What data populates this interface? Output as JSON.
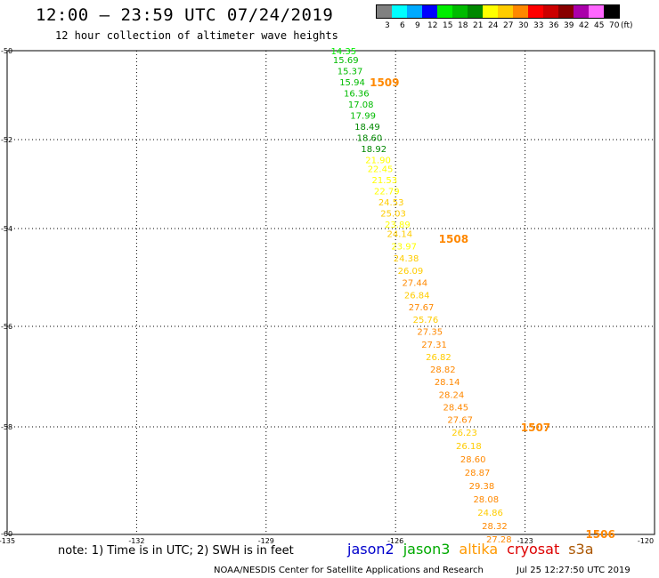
{
  "header": {
    "title": "12:00 — 23:59 UTC 07/24/2019",
    "subtitle": "12 hour collection of altimeter wave heights"
  },
  "legend": {
    "unit_label": "(ft)",
    "bins": [
      {
        "label": "3",
        "color": "#808080"
      },
      {
        "label": "6",
        "color": "#00ffff"
      },
      {
        "label": "9",
        "color": "#00aaff"
      },
      {
        "label": "12",
        "color": "#0000ff"
      },
      {
        "label": "15",
        "color": "#00ee00"
      },
      {
        "label": "18",
        "color": "#00bb00"
      },
      {
        "label": "21",
        "color": "#008800"
      },
      {
        "label": "24",
        "color": "#ffff00"
      },
      {
        "label": "27",
        "color": "#ffcc00"
      },
      {
        "label": "30",
        "color": "#ff8800"
      },
      {
        "label": "33",
        "color": "#ff0000"
      },
      {
        "label": "36",
        "color": "#cc0000"
      },
      {
        "label": "39",
        "color": "#880000"
      },
      {
        "label": "42",
        "color": "#aa00aa"
      },
      {
        "label": "45",
        "color": "#ff66ff"
      },
      {
        "label": "70",
        "color": "#000000"
      }
    ]
  },
  "map": {
    "lat_ticks": [
      "-50",
      "-52",
      "-54",
      "-56",
      "-58",
      "-60"
    ],
    "lon_ticks": [
      "-135",
      "-132",
      "-129",
      "-126",
      "-123",
      "-120"
    ],
    "hour_marks": [
      {
        "label": "1509",
        "lat": -50.7,
        "lon": -126.6
      },
      {
        "label": "1508",
        "lat": -54.2,
        "lon": -125.0
      },
      {
        "label": "1507",
        "lat": -58.0,
        "lon": -123.1
      },
      {
        "label": "1506",
        "lat": -60.0,
        "lon": -121.6
      }
    ],
    "swh_points": [
      {
        "value": "14.35",
        "lat": -50.0,
        "lon": -127.5
      },
      {
        "value": "15.69",
        "lat": -50.2,
        "lon": -127.45
      },
      {
        "value": "15.37",
        "lat": -50.45,
        "lon": -127.35
      },
      {
        "value": "15.94",
        "lat": -50.7,
        "lon": -127.3
      },
      {
        "value": "16.36",
        "lat": -50.95,
        "lon": -127.2
      },
      {
        "value": "17.08",
        "lat": -51.2,
        "lon": -127.1
      },
      {
        "value": "17.99",
        "lat": -51.45,
        "lon": -127.05
      },
      {
        "value": "18.49",
        "lat": -51.7,
        "lon": -126.95
      },
      {
        "value": "18.60",
        "lat": -51.95,
        "lon": -126.9
      },
      {
        "value": "18.92",
        "lat": -52.2,
        "lon": -126.8
      },
      {
        "value": "21.90",
        "lat": -52.45,
        "lon": -126.7
      },
      {
        "value": "22.45",
        "lat": -52.65,
        "lon": -126.65
      },
      {
        "value": "21.53",
        "lat": -52.9,
        "lon": -126.55
      },
      {
        "value": "22.79",
        "lat": -53.15,
        "lon": -126.5
      },
      {
        "value": "24.53",
        "lat": -53.4,
        "lon": -126.4
      },
      {
        "value": "25.03",
        "lat": -53.65,
        "lon": -126.35
      },
      {
        "value": "23.89",
        "lat": -53.9,
        "lon": -126.25
      },
      {
        "value": "24.14",
        "lat": -54.1,
        "lon": -126.2
      },
      {
        "value": "23.97",
        "lat": -54.35,
        "lon": -126.1
      },
      {
        "value": "24.38",
        "lat": -54.6,
        "lon": -126.05
      },
      {
        "value": "26.09",
        "lat": -54.85,
        "lon": -125.95
      },
      {
        "value": "27.44",
        "lat": -55.1,
        "lon": -125.85
      },
      {
        "value": "26.84",
        "lat": -55.35,
        "lon": -125.8
      },
      {
        "value": "27.67",
        "lat": -55.6,
        "lon": -125.7
      },
      {
        "value": "25.76",
        "lat": -55.85,
        "lon": -125.6
      },
      {
        "value": "27.35",
        "lat": -56.1,
        "lon": -125.5
      },
      {
        "value": "27.31",
        "lat": -56.35,
        "lon": -125.4
      },
      {
        "value": "26.82",
        "lat": -56.6,
        "lon": -125.3
      },
      {
        "value": "28.82",
        "lat": -56.85,
        "lon": -125.2
      },
      {
        "value": "28.14",
        "lat": -57.1,
        "lon": -125.1
      },
      {
        "value": "28.24",
        "lat": -57.35,
        "lon": -125.0
      },
      {
        "value": "28.45",
        "lat": -57.6,
        "lon": -124.9
      },
      {
        "value": "27.67",
        "lat": -57.85,
        "lon": -124.8
      },
      {
        "value": "26.23",
        "lat": -58.1,
        "lon": -124.7
      },
      {
        "value": "26.18",
        "lat": -58.35,
        "lon": -124.6
      },
      {
        "value": "28.60",
        "lat": -58.6,
        "lon": -124.5
      },
      {
        "value": "28.87",
        "lat": -58.85,
        "lon": -124.4
      },
      {
        "value": "29.38",
        "lat": -59.1,
        "lon": -124.3
      },
      {
        "value": "28.08",
        "lat": -59.35,
        "lon": -124.2
      },
      {
        "value": "24.86",
        "lat": -59.6,
        "lon": -124.1
      },
      {
        "value": "28.32",
        "lat": -59.85,
        "lon": -124.0
      },
      {
        "value": "27.28",
        "lat": -60.1,
        "lon": -123.9
      }
    ]
  },
  "footer": {
    "note": "note: 1) Time is in UTC; 2) SWH is in feet",
    "satellites": [
      {
        "label": "jason2",
        "color": "#0000cc"
      },
      {
        "label": "jason3",
        "color": "#00aa00"
      },
      {
        "label": "altika",
        "color": "#ff9900"
      },
      {
        "label": "cryosat",
        "color": "#dd0000"
      },
      {
        "label": "s3a",
        "color": "#aa5500"
      }
    ],
    "credit": "NOAA/NESDIS Center for Satellite Applications and Research",
    "timestamp": "Jul 25 12:27:50 UTC 2019"
  }
}
